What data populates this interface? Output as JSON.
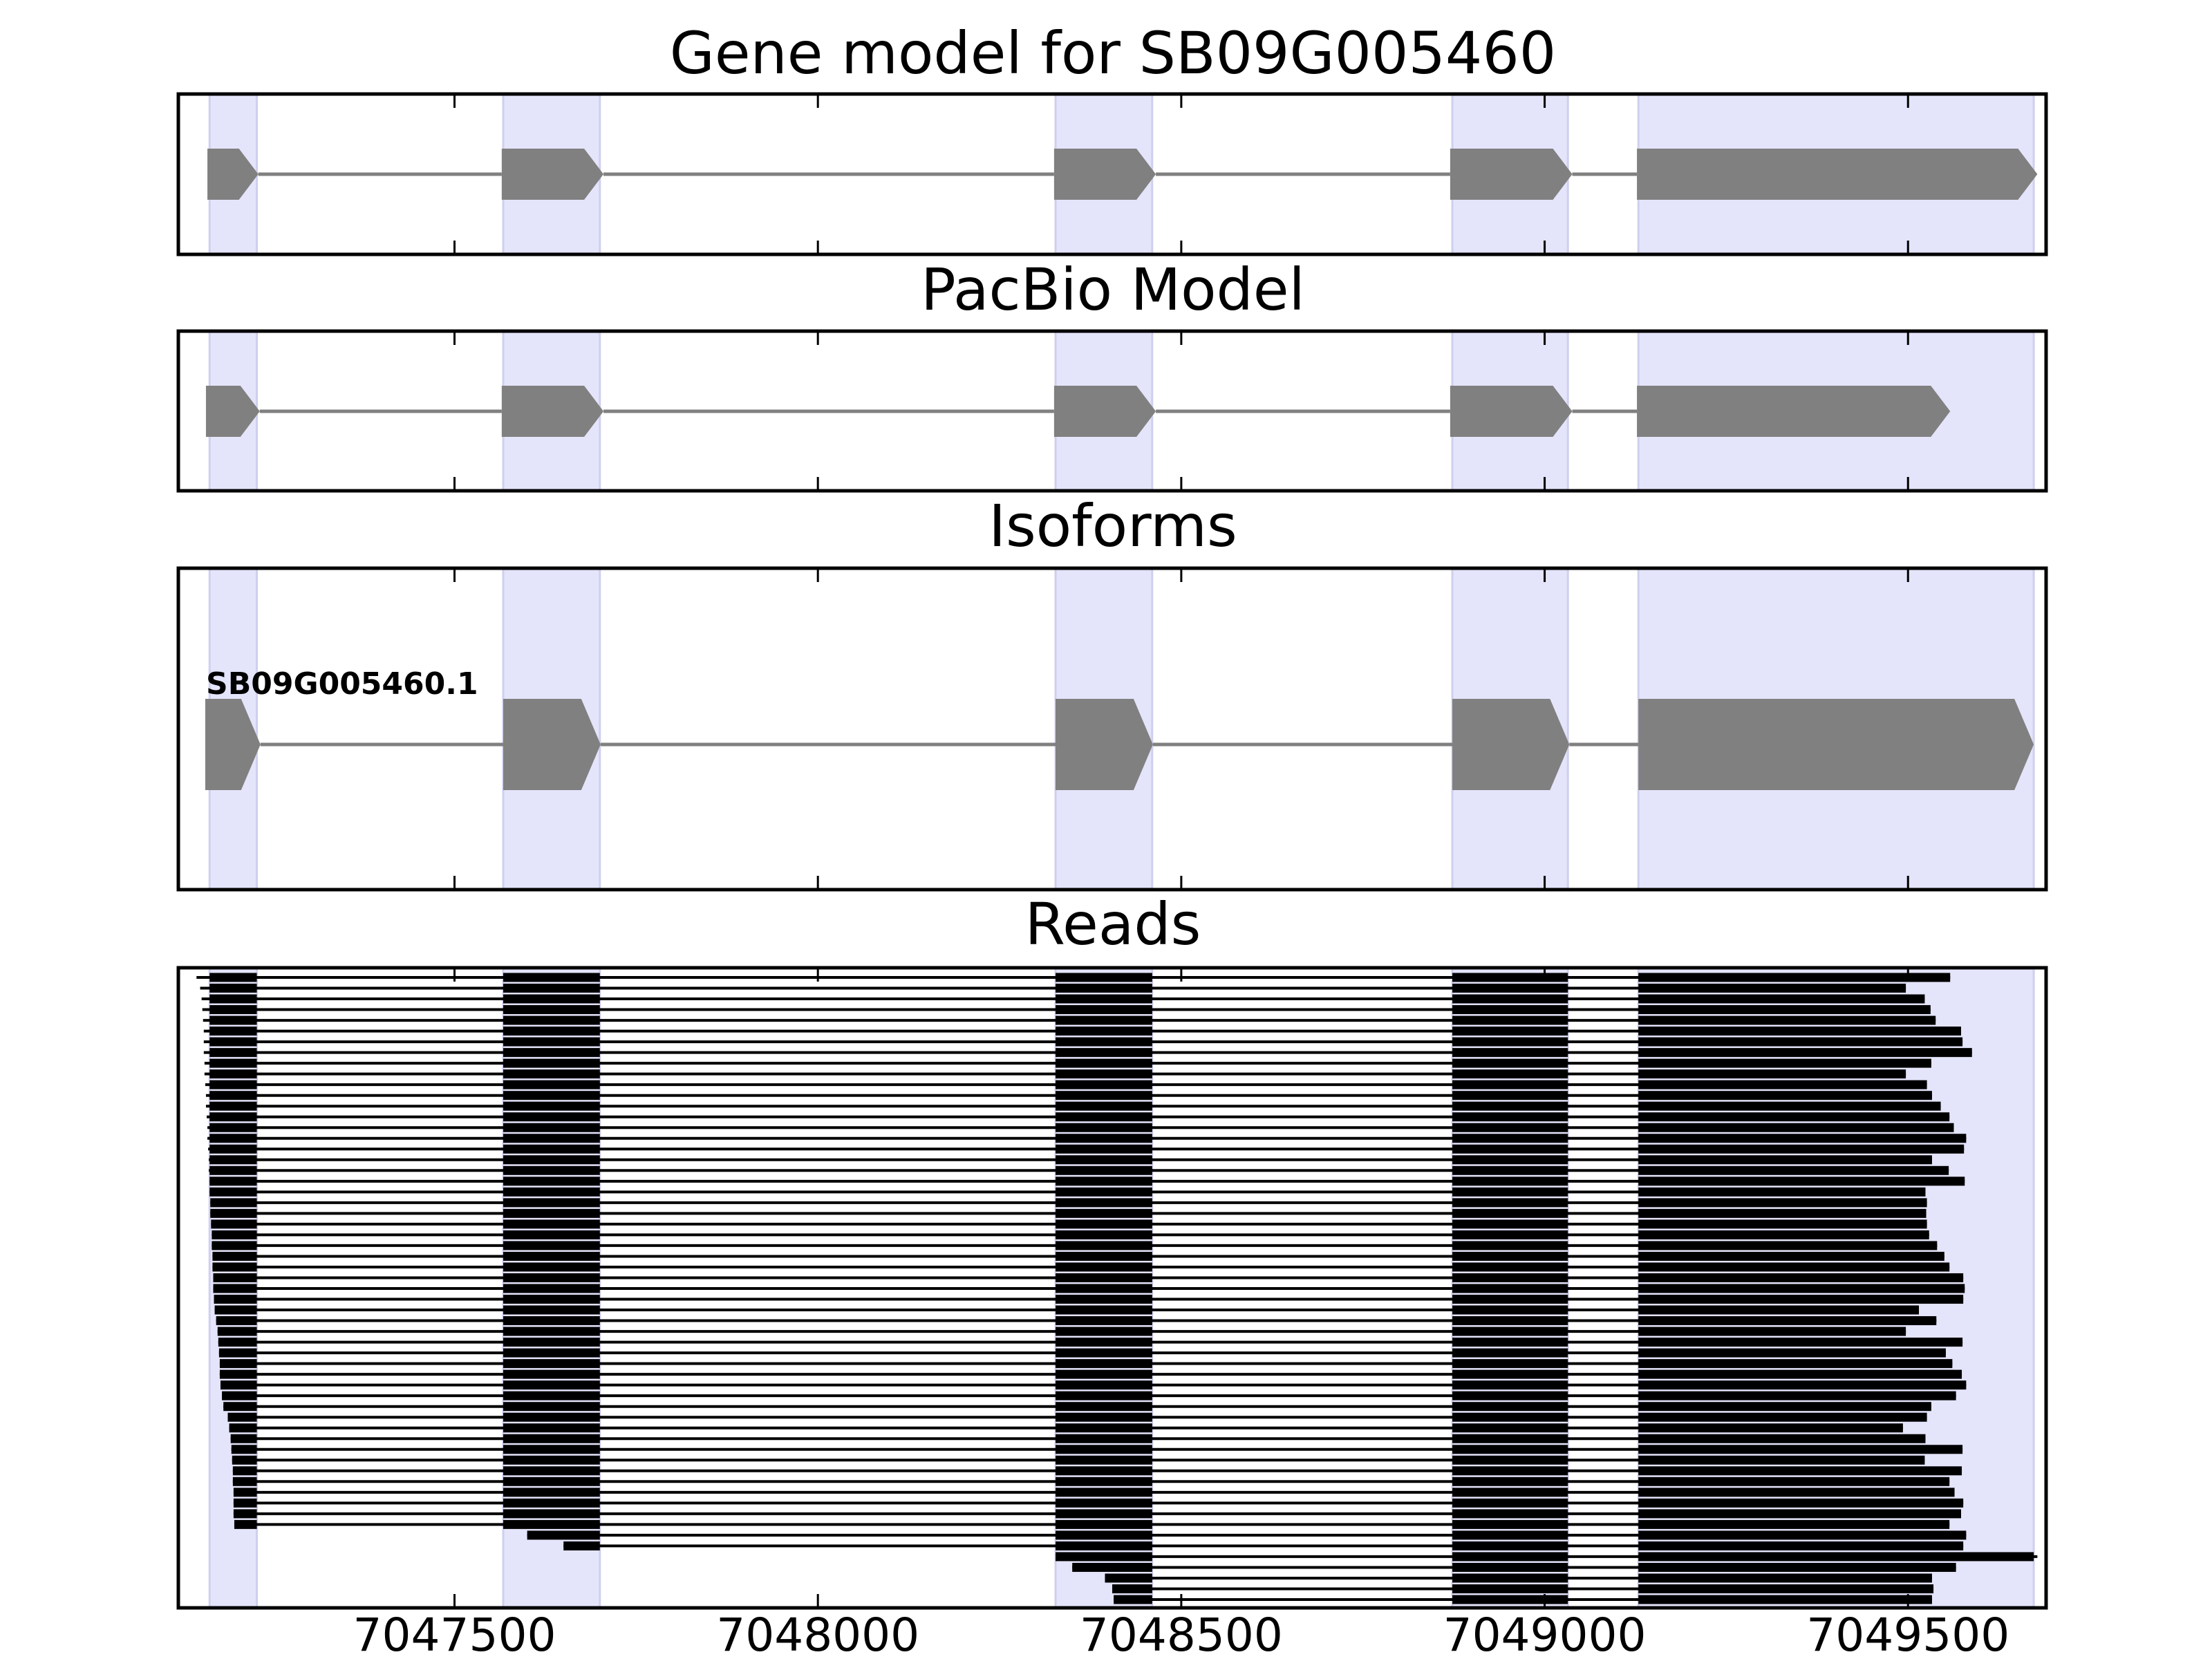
{
  "figure": {
    "background": "#ffffff",
    "exon_band_color": "#e4e4fb",
    "exon_band_edge": "#cfcfee",
    "model_color": "#808080",
    "read_color": "#000000"
  },
  "chart_data": {
    "type": "gene-track",
    "xlim": [
      7047120,
      7049690
    ],
    "xticks": [
      7047500,
      7048000,
      7048500,
      7049000,
      7049500
    ],
    "xtick_labels": [
      "7047500",
      "7048000",
      "7048500",
      "7049000",
      "7049500"
    ],
    "exon_bands": [
      [
        7047163,
        7047228
      ],
      [
        7047567,
        7047700
      ],
      [
        7048327,
        7048460
      ],
      [
        7048873,
        7049032
      ],
      [
        7049129,
        7049673
      ]
    ],
    "panels": [
      {
        "title": "Gene model for SB09G005460",
        "kind": "model",
        "exons": [
          [
            7047160,
            7047230
          ],
          [
            7047565,
            7047705
          ],
          [
            7048325,
            7048465
          ],
          [
            7048870,
            7049038
          ],
          [
            7049127,
            7049678
          ]
        ]
      },
      {
        "title": "PacBio Model",
        "kind": "model",
        "exons": [
          [
            7047158,
            7047232
          ],
          [
            7047565,
            7047705
          ],
          [
            7048325,
            7048465
          ],
          [
            7048870,
            7049038
          ],
          [
            7049127,
            7049558
          ]
        ]
      },
      {
        "title": "Isoforms",
        "kind": "model",
        "isoform_label": "SB09G005460.1",
        "exons": [
          [
            7047157,
            7047233
          ],
          [
            7047567,
            7047701
          ],
          [
            7048327,
            7048461
          ],
          [
            7048873,
            7049034
          ],
          [
            7049129,
            7049673
          ]
        ]
      },
      {
        "title": "Reads",
        "kind": "reads",
        "read_count": 59,
        "reads": [
          [
            7047145,
            7049558
          ],
          [
            7047150,
            7049497
          ],
          [
            7047152,
            7049523
          ],
          [
            7047153,
            7049531
          ],
          [
            7047154,
            7049538
          ],
          [
            7047155,
            7049573
          ],
          [
            7047155,
            7049575
          ],
          [
            7047155,
            7049588
          ],
          [
            7047156,
            7049532
          ],
          [
            7047156,
            7049497
          ],
          [
            7047157,
            7049526
          ],
          [
            7047158,
            7049533
          ],
          [
            7047158,
            7049545
          ],
          [
            7047159,
            7049557
          ],
          [
            7047160,
            7049563
          ],
          [
            7047160,
            7049580
          ],
          [
            7047161,
            7049577
          ],
          [
            7047162,
            7049533
          ],
          [
            7047162,
            7049556
          ],
          [
            7047163,
            7049578
          ],
          [
            7047163,
            7049524
          ],
          [
            7047164,
            7049526
          ],
          [
            7047164,
            7049525
          ],
          [
            7047165,
            7049526
          ],
          [
            7047166,
            7049529
          ],
          [
            7047166,
            7049540
          ],
          [
            7047167,
            7049550
          ],
          [
            7047167,
            7049557
          ],
          [
            7047168,
            7049576
          ],
          [
            7047168,
            7049578
          ],
          [
            7047169,
            7049576
          ],
          [
            7047170,
            7049515
          ],
          [
            7047172,
            7049539
          ],
          [
            7047174,
            7049497
          ],
          [
            7047175,
            7049575
          ],
          [
            7047176,
            7049552
          ],
          [
            7047177,
            7049561
          ],
          [
            7047177,
            7049574
          ],
          [
            7047178,
            7049580
          ],
          [
            7047180,
            7049566
          ],
          [
            7047182,
            7049532
          ],
          [
            7047188,
            7049526
          ],
          [
            7047190,
            7049493
          ],
          [
            7047192,
            7049524
          ],
          [
            7047193,
            7049575
          ],
          [
            7047194,
            7049523
          ],
          [
            7047195,
            7049574
          ],
          [
            7047195,
            7049557
          ],
          [
            7047196,
            7049564
          ],
          [
            7047196,
            7049576
          ],
          [
            7047196,
            7049573
          ],
          [
            7047197,
            7049557
          ],
          [
            7047600,
            7049580
          ],
          [
            7047650,
            7049576
          ],
          [
            7048327,
            7049678
          ],
          [
            7048350,
            7049566
          ],
          [
            7048395,
            7049533
          ],
          [
            7048405,
            7049535
          ],
          [
            7048407,
            7049533
          ]
        ]
      }
    ]
  }
}
